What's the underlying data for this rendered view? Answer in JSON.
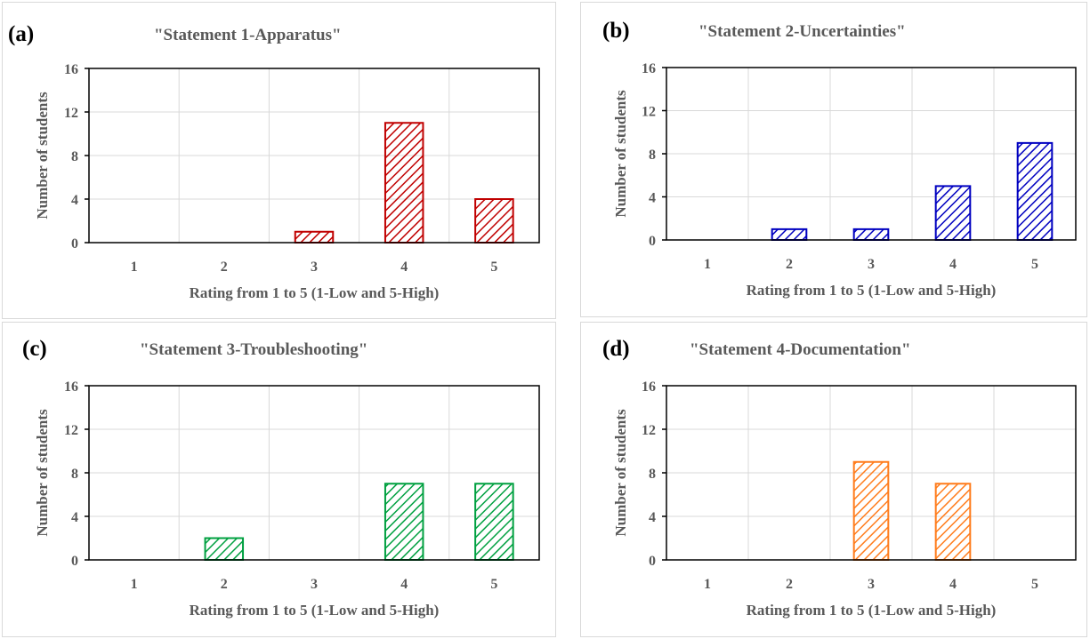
{
  "colors": {
    "a": "#c00000",
    "b": "#0000c0",
    "c": "#00a040",
    "d": "#ff7c1c",
    "grid": "#d9d9d9",
    "axis": "#000000",
    "text": "#595959"
  },
  "chart_data": [
    {
      "type": "bar",
      "panel_label": "(a)",
      "title": "\"Statement 1-Apparatus\"",
      "xlabel": "Rating from 1 to 5 (1-Low and 5-High)",
      "ylabel": "Number of students",
      "categories": [
        "1",
        "2",
        "3",
        "4",
        "5"
      ],
      "values": [
        0,
        0,
        1,
        11,
        4
      ],
      "ylim": [
        0,
        16
      ],
      "yticks": [
        0,
        4,
        8,
        12,
        16
      ],
      "grid": true,
      "color": "#c00000",
      "fill": "diagonal-hatch"
    },
    {
      "type": "bar",
      "panel_label": "(b)",
      "title": "\"Statement 2-Uncertainties\"",
      "xlabel": "Rating from 1 to 5 (1-Low and 5-High)",
      "ylabel": "Number of students",
      "categories": [
        "1",
        "2",
        "3",
        "4",
        "5"
      ],
      "values": [
        0,
        1,
        1,
        5,
        9
      ],
      "ylim": [
        0,
        16
      ],
      "yticks": [
        0,
        4,
        8,
        12,
        16
      ],
      "grid": true,
      "color": "#0000c0",
      "fill": "diagonal-hatch"
    },
    {
      "type": "bar",
      "panel_label": "(c)",
      "title": "\"Statement 3-Troubleshooting\"",
      "xlabel": "Rating from 1 to 5 (1-Low and 5-High)",
      "ylabel": "Number of students",
      "categories": [
        "1",
        "2",
        "3",
        "4",
        "5"
      ],
      "values": [
        0,
        2,
        0,
        7,
        7
      ],
      "ylim": [
        0,
        16
      ],
      "yticks": [
        0,
        4,
        8,
        12,
        16
      ],
      "grid": true,
      "color": "#00a040",
      "fill": "diagonal-hatch"
    },
    {
      "type": "bar",
      "panel_label": "(d)",
      "title": "\"Statement 4-Documentation\"",
      "xlabel": "Rating from 1 to 5 (1-Low and 5-High)",
      "ylabel": "Number of students",
      "categories": [
        "1",
        "2",
        "3",
        "4",
        "5"
      ],
      "values": [
        0,
        0,
        9,
        7,
        0
      ],
      "ylim": [
        0,
        16
      ],
      "yticks": [
        0,
        4,
        8,
        12,
        16
      ],
      "grid": true,
      "color": "#ff7c1c",
      "fill": "diagonal-hatch"
    }
  ]
}
